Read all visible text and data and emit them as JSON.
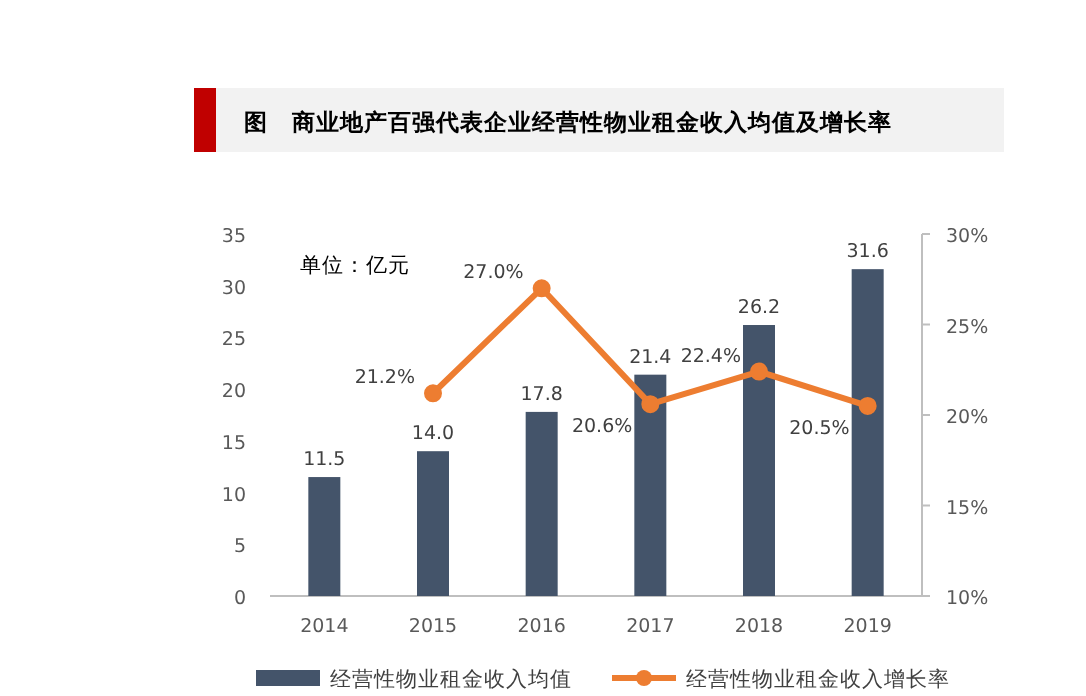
{
  "chart_data": {
    "type": "bar",
    "title": "图　商业地产百强代表企业经营性物业租金收入均值及增长率",
    "categories": [
      "2014",
      "2015",
      "2016",
      "2017",
      "2018",
      "2019"
    ],
    "series": [
      {
        "name": "经营性物业租金收入均值",
        "color": "#44546a",
        "values": [
          11.5,
          14.0,
          17.8,
          21.4,
          26.2,
          31.6
        ],
        "value_labels": [
          "11.5",
          "14.0",
          "17.8",
          "21.4",
          "26.2",
          "31.6"
        ]
      },
      {
        "name": "经营性物业租金收入增长率",
        "type": "line",
        "axis": "y2",
        "color": "#ed7d31",
        "marker": "circle",
        "values": [
          null,
          21.2,
          27.0,
          20.6,
          22.4,
          20.5
        ],
        "value_labels": [
          null,
          "21.2%",
          "27.0%",
          "20.6%",
          "22.4%",
          "20.5%"
        ]
      }
    ],
    "ylim": [
      0,
      35
    ],
    "yticks": [
      0,
      5,
      10,
      15,
      20,
      25,
      30,
      35
    ],
    "y2lim": [
      10,
      30
    ],
    "y2ticks": [
      {
        "value": 10,
        "label": "10%"
      },
      {
        "value": 15,
        "label": "15%"
      },
      {
        "value": 20,
        "label": "20%"
      },
      {
        "value": 25,
        "label": "25%"
      },
      {
        "value": 30,
        "label": "30%"
      }
    ],
    "annotations": [
      "单位：亿元"
    ],
    "legend": "bottom",
    "grid": false
  }
}
